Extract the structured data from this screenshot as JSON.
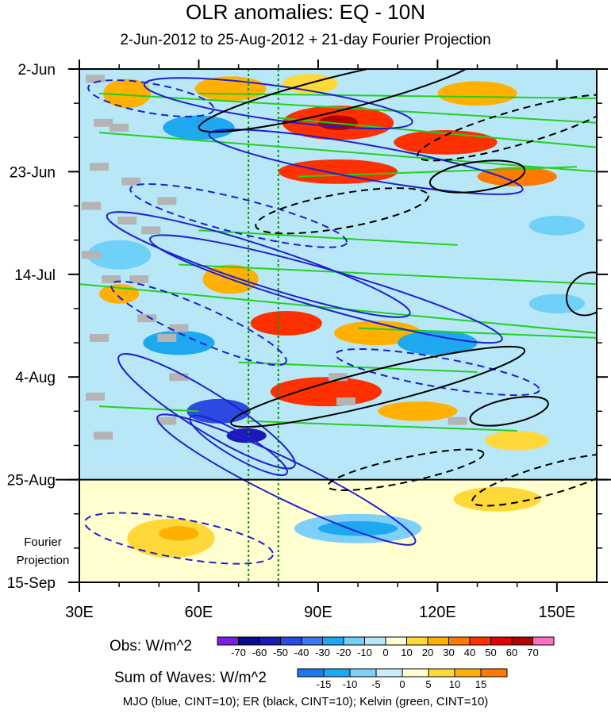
{
  "title": "OLR anomalies: EQ - 10N",
  "subtitle": "2-Jun-2012 to 25-Aug-2012 + 21-day Fourier Projection",
  "footer": "MJO (blue, CINT=10); ER (black, CINT=10); Kelvin (green, CINT=10)",
  "colors": {
    "mjo": "#1f1fd0",
    "er": "#000000",
    "kelvin": "#22d022",
    "missing": "#b4b4b4"
  },
  "chart_data": {
    "type": "heatmap",
    "x_axis": {
      "range_deg": [
        30,
        160
      ],
      "ticks": [
        30,
        60,
        90,
        120,
        150
      ],
      "tick_labels": [
        "30E",
        "60E",
        "90E",
        "120E",
        "150E"
      ]
    },
    "y_axis": {
      "range": [
        "2-Jun",
        "15-Sep"
      ],
      "ticks_day": [
        0,
        21,
        42,
        63,
        84,
        105
      ],
      "tick_labels": [
        "2-Jun",
        "23-Jun",
        "14-Jul",
        "4-Aug",
        "25-Aug",
        "15-Sep"
      ],
      "obs_end_label": "25-Aug",
      "projection_label": "Fourier Projection"
    },
    "reference_lines_lon": [
      72.5,
      80
    ],
    "obs_colorbar": {
      "label": "Obs: W/m^2",
      "levels": [
        -70,
        -60,
        -50,
        -40,
        -30,
        -20,
        -10,
        0,
        10,
        20,
        30,
        40,
        50,
        60,
        70
      ],
      "colors": [
        "#7a20e0",
        "#0a0a8c",
        "#1a1ab4",
        "#2a4ae0",
        "#3a78f0",
        "#1ea8f0",
        "#6fd0f8",
        "#b8e8f8",
        "#ffffd0",
        "#ffd83a",
        "#ffb000",
        "#ff7a00",
        "#ff3000",
        "#e00000",
        "#b40000",
        "#ff70c0"
      ]
    },
    "waves_colorbar": {
      "label": "Sum of Waves: W/m^2",
      "levels": [
        -15,
        -10,
        -5,
        0,
        5,
        10,
        15
      ],
      "colors": [
        "#1e78f0",
        "#1ea8f0",
        "#7fd0f8",
        "#c8ecf8",
        "#ffffd0",
        "#ffd83a",
        "#ffb000",
        "#ff7a00"
      ]
    },
    "obs_regions": [
      {
        "lon": 42,
        "day": 5,
        "w": 12,
        "h": 6,
        "value": 25
      },
      {
        "lon": 68,
        "day": 4,
        "w": 18,
        "h": 5,
        "value": 25
      },
      {
        "lon": 88,
        "day": 3,
        "w": 14,
        "h": 4,
        "value": 18
      },
      {
        "lon": 130,
        "day": 5,
        "w": 20,
        "h": 5,
        "value": 28
      },
      {
        "lon": 95,
        "day": 11,
        "w": 28,
        "h": 7,
        "value": 45
      },
      {
        "lon": 95,
        "day": 11,
        "w": 10,
        "h": 3,
        "value": 65
      },
      {
        "lon": 122,
        "day": 15,
        "w": 26,
        "h": 5,
        "value": 40
      },
      {
        "lon": 95,
        "day": 21,
        "w": 30,
        "h": 5,
        "value": 42
      },
      {
        "lon": 140,
        "day": 22,
        "w": 20,
        "h": 4,
        "value": 30
      },
      {
        "lon": 68,
        "day": 43,
        "w": 14,
        "h": 6,
        "value": 28
      },
      {
        "lon": 40,
        "day": 46,
        "w": 10,
        "h": 4,
        "value": 20
      },
      {
        "lon": 82,
        "day": 52,
        "w": 18,
        "h": 5,
        "value": 45
      },
      {
        "lon": 105,
        "day": 54,
        "w": 22,
        "h": 5,
        "value": 28
      },
      {
        "lon": 92,
        "day": 66,
        "w": 28,
        "h": 6,
        "value": 45
      },
      {
        "lon": 115,
        "day": 70,
        "w": 20,
        "h": 4,
        "value": 25
      },
      {
        "lon": 140,
        "day": 76,
        "w": 16,
        "h": 4,
        "value": 18
      },
      {
        "lon": 60,
        "day": 12,
        "w": 18,
        "h": 5,
        "value": -25
      },
      {
        "lon": 40,
        "day": 38,
        "w": 16,
        "h": 6,
        "value": -20
      },
      {
        "lon": 55,
        "day": 56,
        "w": 18,
        "h": 5,
        "value": -25
      },
      {
        "lon": 65,
        "day": 70,
        "w": 16,
        "h": 5,
        "value": -45
      },
      {
        "lon": 72,
        "day": 75,
        "w": 10,
        "h": 3,
        "value": -60
      },
      {
        "lon": 120,
        "day": 56,
        "w": 20,
        "h": 5,
        "value": -22
      },
      {
        "lon": 150,
        "day": 48,
        "w": 14,
        "h": 4,
        "value": -20
      },
      {
        "lon": 150,
        "day": 32,
        "w": 14,
        "h": 4,
        "value": -15
      }
    ],
    "projection_regions": [
      {
        "lon": 53,
        "day": 96,
        "w": 22,
        "h": 8,
        "value": 8
      },
      {
        "lon": 55,
        "day": 95,
        "w": 10,
        "h": 3,
        "value": 12
      },
      {
        "lon": 135,
        "day": 88,
        "w": 22,
        "h": 5,
        "value": 8
      },
      {
        "lon": 100,
        "day": 94,
        "w": 32,
        "h": 6,
        "value": -8
      },
      {
        "lon": 100,
        "day": 94,
        "w": 20,
        "h": 3,
        "value": -12
      }
    ],
    "missing_cells": [
      {
        "lon": 34,
        "day": 2
      },
      {
        "lon": 36,
        "day": 11
      },
      {
        "lon": 40,
        "day": 12
      },
      {
        "lon": 35,
        "day": 20
      },
      {
        "lon": 43,
        "day": 23
      },
      {
        "lon": 52,
        "day": 27
      },
      {
        "lon": 33,
        "day": 28
      },
      {
        "lon": 42,
        "day": 31
      },
      {
        "lon": 48,
        "day": 33
      },
      {
        "lon": 33,
        "day": 38
      },
      {
        "lon": 38,
        "day": 43
      },
      {
        "lon": 45,
        "day": 43
      },
      {
        "lon": 47,
        "day": 51
      },
      {
        "lon": 55,
        "day": 53
      },
      {
        "lon": 52,
        "day": 55
      },
      {
        "lon": 35,
        "day": 55
      },
      {
        "lon": 55,
        "day": 63
      },
      {
        "lon": 34,
        "day": 67
      },
      {
        "lon": 52,
        "day": 72
      },
      {
        "lon": 36,
        "day": 75
      },
      {
        "lon": 95,
        "day": 63
      },
      {
        "lon": 97,
        "day": 68
      },
      {
        "lon": 125,
        "day": 72
      }
    ],
    "mjo_contours": [
      {
        "lon": 80,
        "day": 7,
        "rx": 34,
        "ry": 3.5,
        "angle_deg": 8,
        "dashed": false
      },
      {
        "lon": 102,
        "day": 19,
        "rx": 40,
        "ry": 3.5,
        "angle_deg": 10,
        "dashed": false
      },
      {
        "lon": 70,
        "day": 30,
        "rx": 28,
        "ry": 3.5,
        "angle_deg": 14,
        "dashed": true
      },
      {
        "lon": 75,
        "day": 40,
        "rx": 40,
        "ry": 4,
        "angle_deg": 18,
        "dashed": false
      },
      {
        "lon": 92,
        "day": 45,
        "rx": 46,
        "ry": 4,
        "angle_deg": 16,
        "dashed": false
      },
      {
        "lon": 60,
        "day": 52,
        "rx": 24,
        "ry": 3.5,
        "angle_deg": 24,
        "dashed": true
      },
      {
        "lon": 62,
        "day": 70,
        "rx": 26,
        "ry": 4,
        "angle_deg": 32,
        "dashed": false
      },
      {
        "lon": 82,
        "day": 84,
        "rx": 36,
        "ry": 4,
        "angle_deg": 26,
        "dashed": false
      },
      {
        "lon": 70,
        "day": 77,
        "rx": 14,
        "ry": 2.5,
        "angle_deg": 30,
        "dashed": false
      },
      {
        "lon": 55,
        "day": 96,
        "rx": 24,
        "ry": 4,
        "angle_deg": 10,
        "dashed": true
      },
      {
        "lon": 120,
        "day": 62,
        "rx": 26,
        "ry": 3,
        "angle_deg": 10,
        "dashed": true
      },
      {
        "lon": 48,
        "day": 6,
        "rx": 16,
        "ry": 3,
        "angle_deg": 10,
        "dashed": true
      }
    ],
    "er_contours": [
      {
        "lon": 95,
        "day": 5,
        "rx": 36,
        "ry": 3.5,
        "angle_deg": -14,
        "dashed": false
      },
      {
        "lon": 140,
        "day": 12,
        "rx": 26,
        "ry": 3.5,
        "angle_deg": -16,
        "dashed": true
      },
      {
        "lon": 105,
        "day": 65,
        "rx": 38,
        "ry": 3.5,
        "angle_deg": -14,
        "dashed": false
      },
      {
        "lon": 138,
        "day": 70,
        "rx": 10,
        "ry": 2.5,
        "angle_deg": -12,
        "dashed": false
      },
      {
        "lon": 96,
        "day": 29,
        "rx": 22,
        "ry": 3.5,
        "angle_deg": -10,
        "dashed": true
      },
      {
        "lon": 130,
        "day": 22,
        "rx": 12,
        "ry": 3,
        "angle_deg": -8,
        "dashed": false
      },
      {
        "lon": 112,
        "day": 82,
        "rx": 20,
        "ry": 2.5,
        "angle_deg": -12,
        "dashed": true
      },
      {
        "lon": 148,
        "day": 84,
        "rx": 20,
        "ry": 3,
        "angle_deg": -16,
        "dashed": true
      },
      {
        "lon": 158,
        "day": 46,
        "rx": 6,
        "ry": 4,
        "angle_deg": -40,
        "dashed": false
      }
    ],
    "kelvin_lines": [
      {
        "lon1": 35,
        "day1": 5,
        "lon2": 160,
        "day2": 11
      },
      {
        "lon1": 60,
        "day1": 5,
        "lon2": 160,
        "day2": 6
      },
      {
        "lon1": 35,
        "day1": 13,
        "lon2": 160,
        "day2": 21
      },
      {
        "lon1": 80,
        "day1": 10,
        "lon2": 160,
        "day2": 16
      },
      {
        "lon1": 85,
        "day1": 22,
        "lon2": 155,
        "day2": 20
      },
      {
        "lon1": 30,
        "day1": 44,
        "lon2": 160,
        "day2": 54
      },
      {
        "lon1": 55,
        "day1": 40,
        "lon2": 160,
        "day2": 44
      },
      {
        "lon1": 60,
        "day1": 33,
        "lon2": 125,
        "day2": 36
      },
      {
        "lon1": 100,
        "day1": 53,
        "lon2": 160,
        "day2": 55
      },
      {
        "lon1": 70,
        "day1": 60,
        "lon2": 130,
        "day2": 62
      },
      {
        "lon1": 72,
        "day1": 72,
        "lon2": 140,
        "day2": 74
      },
      {
        "lon1": 35,
        "day1": 69,
        "lon2": 60,
        "day2": 70
      }
    ]
  }
}
